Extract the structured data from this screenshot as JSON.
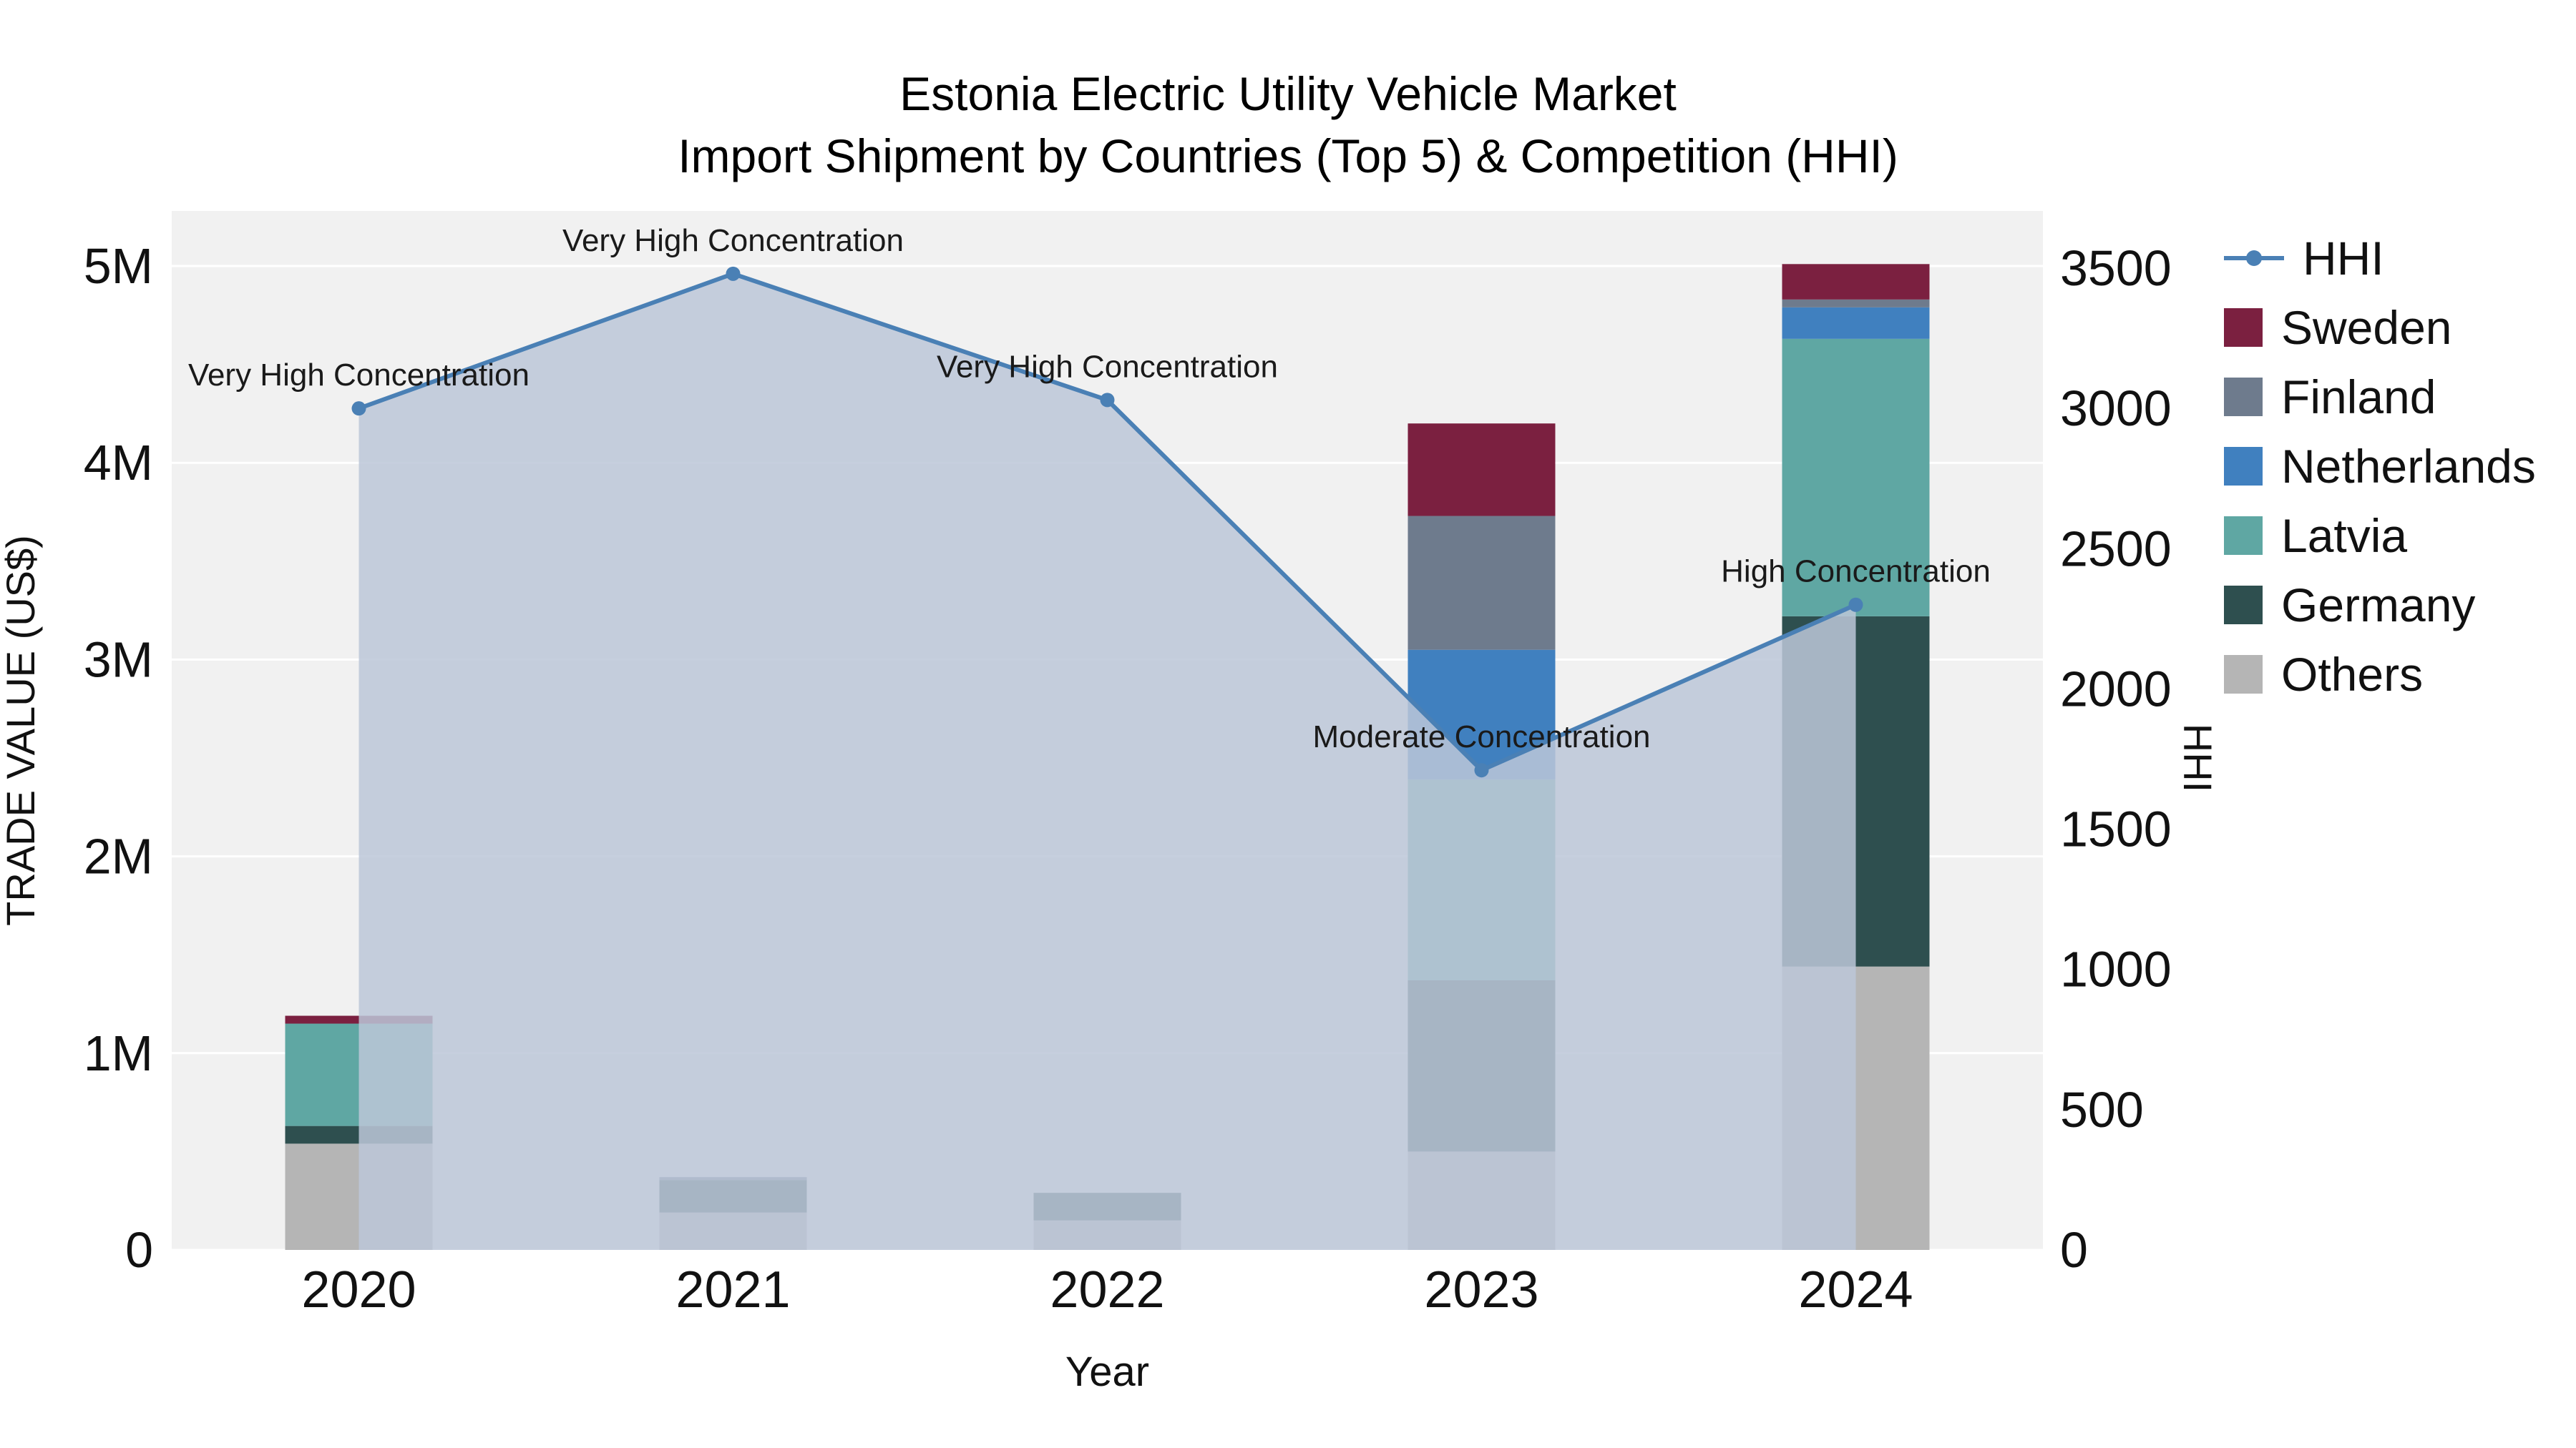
{
  "title": {
    "line1": "Estonia Electric Utility Vehicle Market",
    "line2": "Import Shipment by Countries (Top 5) & Competition (HHI)"
  },
  "axes": {
    "x_title": "Year",
    "x_ticks": [
      "2020",
      "2021",
      "2022",
      "2023",
      "2024"
    ],
    "left_title": "TRADE VALUE (US$)",
    "left_ticks": [
      "0",
      "1M",
      "2M",
      "3M",
      "4M",
      "5M"
    ],
    "left_tick_values_usd": [
      0,
      1000000,
      2000000,
      3000000,
      4000000,
      5000000
    ],
    "right_title": "HHI",
    "right_ticks": [
      "0",
      "500",
      "1000",
      "1500",
      "2000",
      "2500",
      "3000",
      "3500"
    ],
    "right_tick_values": [
      0,
      500,
      1000,
      1500,
      2000,
      2500,
      3000,
      3500
    ]
  },
  "chart_data": {
    "type": "bar",
    "subtype": "stacked-bars-with-line-overlay",
    "categories": [
      "2020",
      "2021",
      "2022",
      "2023",
      "2024"
    ],
    "bar_series": [
      {
        "name": "Others",
        "color": "#b5b5b5",
        "values": [
          540000,
          190000,
          150000,
          500000,
          1440000
        ]
      },
      {
        "name": "Germany",
        "color": "#2e4f4f",
        "values": [
          90000,
          165000,
          140000,
          870000,
          1780000
        ]
      },
      {
        "name": "Latvia",
        "color": "#5fa7a3",
        "values": [
          520000,
          0,
          0,
          1020000,
          1410000
        ]
      },
      {
        "name": "Netherlands",
        "color": "#4080bf",
        "values": [
          0,
          0,
          0,
          660000,
          160000
        ]
      },
      {
        "name": "Finland",
        "color": "#6e7b8d",
        "values": [
          0,
          15000,
          0,
          680000,
          40000
        ]
      },
      {
        "name": "Sweden",
        "color": "#7b2040",
        "values": [
          40000,
          0,
          0,
          470000,
          180000
        ]
      }
    ],
    "line_series": {
      "name": "HHI",
      "color": "#4a80b5",
      "area_fill_color": "rgba(188,199,216,0.85)",
      "values": [
        3000,
        3480,
        3030,
        1710,
        2300
      ]
    },
    "annotations": [
      "Very High Concentration",
      "Very High Concentration",
      "Very High Concentration",
      "Moderate Concentration",
      "High Concentration"
    ],
    "left_axis_range_usd": [
      0,
      5280000
    ],
    "right_axis_range": [
      0,
      3500
    ],
    "plot_background": "#f1f1f1",
    "gridline_color": "#ffffff"
  },
  "legend": {
    "items": [
      {
        "label": "HHI",
        "marker": "line",
        "color": "#4a80b5"
      },
      {
        "label": "Sweden",
        "marker": "square",
        "color": "#7b2040"
      },
      {
        "label": "Finland",
        "marker": "square",
        "color": "#6e7b8d"
      },
      {
        "label": "Netherlands",
        "marker": "square",
        "color": "#4080bf"
      },
      {
        "label": "Latvia",
        "marker": "square",
        "color": "#5fa7a3"
      },
      {
        "label": "Germany",
        "marker": "square",
        "color": "#2e4f4f"
      },
      {
        "label": "Others",
        "marker": "square",
        "color": "#b5b5b5"
      }
    ]
  }
}
